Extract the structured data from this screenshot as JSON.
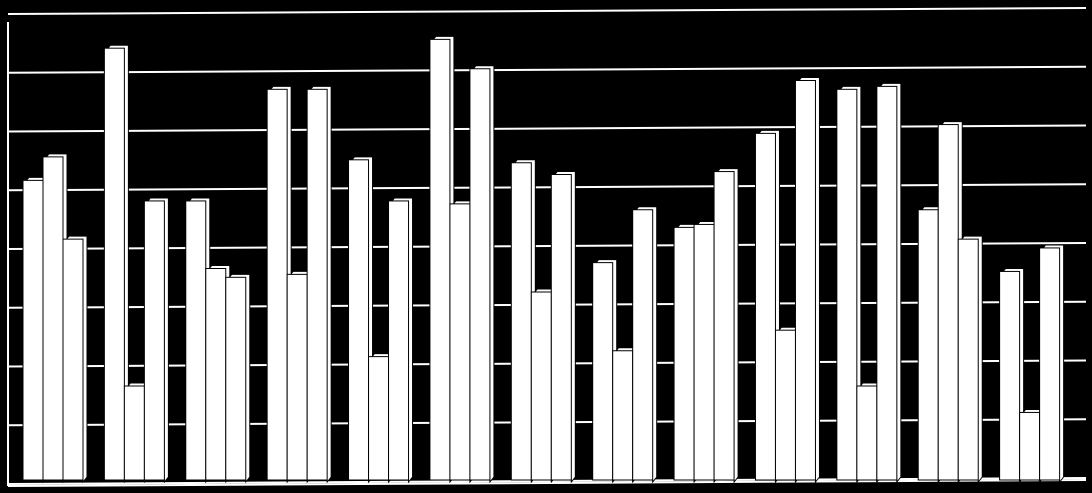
{
  "chart_data": {
    "type": "bar",
    "categories": [
      null,
      null,
      null,
      null,
      null,
      null,
      null,
      null,
      null,
      null,
      null,
      null,
      null
    ],
    "series": [
      {
        "color": "#ffffff",
        "values": [
          5.1,
          7.35,
          4.75,
          6.65,
          5.45,
          7.5,
          5.4,
          3.7,
          4.3,
          5.9,
          6.65,
          4.6,
          3.55
        ]
      },
      {
        "color": "#ffffff",
        "values": [
          5.5,
          1.6,
          3.6,
          3.5,
          2.1,
          4.7,
          3.2,
          2.2,
          4.35,
          2.55,
          1.6,
          6.05,
          1.15
        ]
      },
      {
        "color": "#ffffff",
        "values": [
          4.1,
          4.75,
          3.45,
          6.65,
          4.75,
          7.0,
          5.2,
          4.6,
          5.25,
          6.8,
          6.7,
          4.1,
          3.95
        ]
      }
    ],
    "ylim": [
      0,
      8
    ],
    "yticks": [
      0,
      1,
      2,
      3,
      4,
      5,
      6,
      7,
      8
    ],
    "grid": true,
    "background": "#000000",
    "grid_color": "#ffffff"
  }
}
